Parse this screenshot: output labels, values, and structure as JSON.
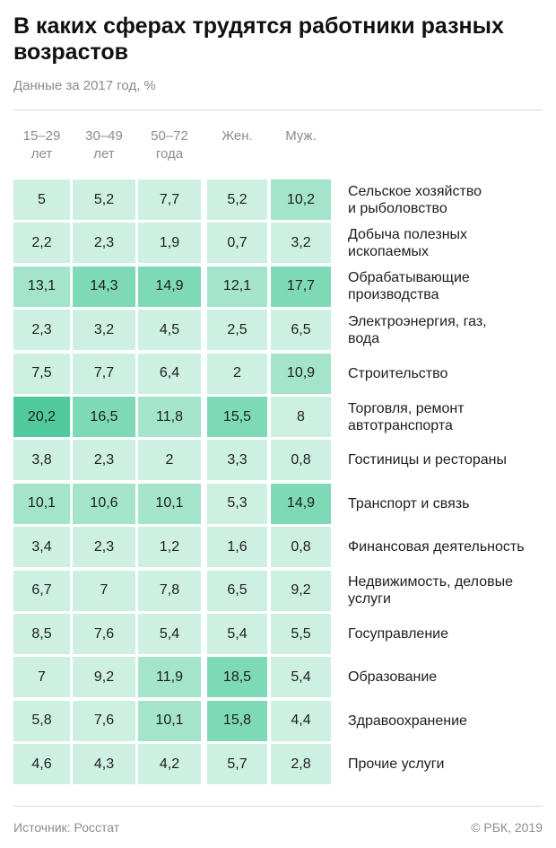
{
  "header": {
    "title": "В каких сферах трудятся работники разных возрастов",
    "subtitle": "Данные за 2017 год, %"
  },
  "footer": {
    "source": "Источник: Росстат",
    "copyright": "© РБК, 2019"
  },
  "chart_data": {
    "type": "heatmap",
    "title": "В каких сферах трудятся работники разных возрастов",
    "subtitle": "Данные за 2017 год, %",
    "columns": [
      {
        "line1": "15–29",
        "line2": "лет"
      },
      {
        "line1": "30–49",
        "line2": "лет"
      },
      {
        "line1": "50–72",
        "line2": "года"
      },
      {
        "line1": "Жен.",
        "line2": ""
      },
      {
        "line1": "Муж.",
        "line2": ""
      }
    ],
    "rows": [
      {
        "label_lines": [
          "Сельское хозяйство",
          "и рыболовство"
        ],
        "values": [
          "5",
          "5,2",
          "7,7",
          "5,2",
          "10,2"
        ]
      },
      {
        "label_lines": [
          "Добыча полезных",
          "ископаемых"
        ],
        "values": [
          "2,2",
          "2,3",
          "1,9",
          "0,7",
          "3,2"
        ]
      },
      {
        "label_lines": [
          "Обрабатывающие",
          "производства"
        ],
        "values": [
          "13,1",
          "14,3",
          "14,9",
          "12,1",
          "17,7"
        ]
      },
      {
        "label_lines": [
          "Электроэнергия, газ,",
          "вода"
        ],
        "values": [
          "2,3",
          "3,2",
          "4,5",
          "2,5",
          "6,5"
        ]
      },
      {
        "label_lines": [
          "Строительство"
        ],
        "values": [
          "7,5",
          "7,7",
          "6,4",
          "2",
          "10,9"
        ]
      },
      {
        "label_lines": [
          "Торговля, ремонт",
          "автотранспорта"
        ],
        "values": [
          "20,2",
          "16,5",
          "11,8",
          "15,5",
          "8"
        ]
      },
      {
        "label_lines": [
          "Гостиницы и рестораны"
        ],
        "values": [
          "3,8",
          "2,3",
          "2",
          "3,3",
          "0,8"
        ]
      },
      {
        "label_lines": [
          "Транспорт и связь"
        ],
        "values": [
          "10,1",
          "10,6",
          "10,1",
          "5,3",
          "14,9"
        ]
      },
      {
        "label_lines": [
          "Финансовая деятельность"
        ],
        "values": [
          "3,4",
          "2,3",
          "1,2",
          "1,6",
          "0,8"
        ]
      },
      {
        "label_lines": [
          "Недвижимость, деловые",
          "услуги"
        ],
        "values": [
          "6,7",
          "7",
          "7,8",
          "6,5",
          "9,2"
        ]
      },
      {
        "label_lines": [
          "Госуправление"
        ],
        "values": [
          "8,5",
          "7,6",
          "5,4",
          "5,4",
          "5,5"
        ]
      },
      {
        "label_lines": [
          "Образование"
        ],
        "values": [
          "7",
          "9,2",
          "11,9",
          "18,5",
          "5,4"
        ]
      },
      {
        "label_lines": [
          "Здравоохранение"
        ],
        "values": [
          "5,8",
          "7,6",
          "10,1",
          "15,8",
          "4,4"
        ]
      },
      {
        "label_lines": [
          "Прочие услуги"
        ],
        "values": [
          "4,6",
          "4,3",
          "4,2",
          "5,7",
          "2,8"
        ]
      }
    ],
    "color_scale": {
      "light": "#cdf0e3",
      "medium": "#a3e4cb",
      "strong": "#7ed9b7",
      "strongest": "#50c99d"
    }
  }
}
